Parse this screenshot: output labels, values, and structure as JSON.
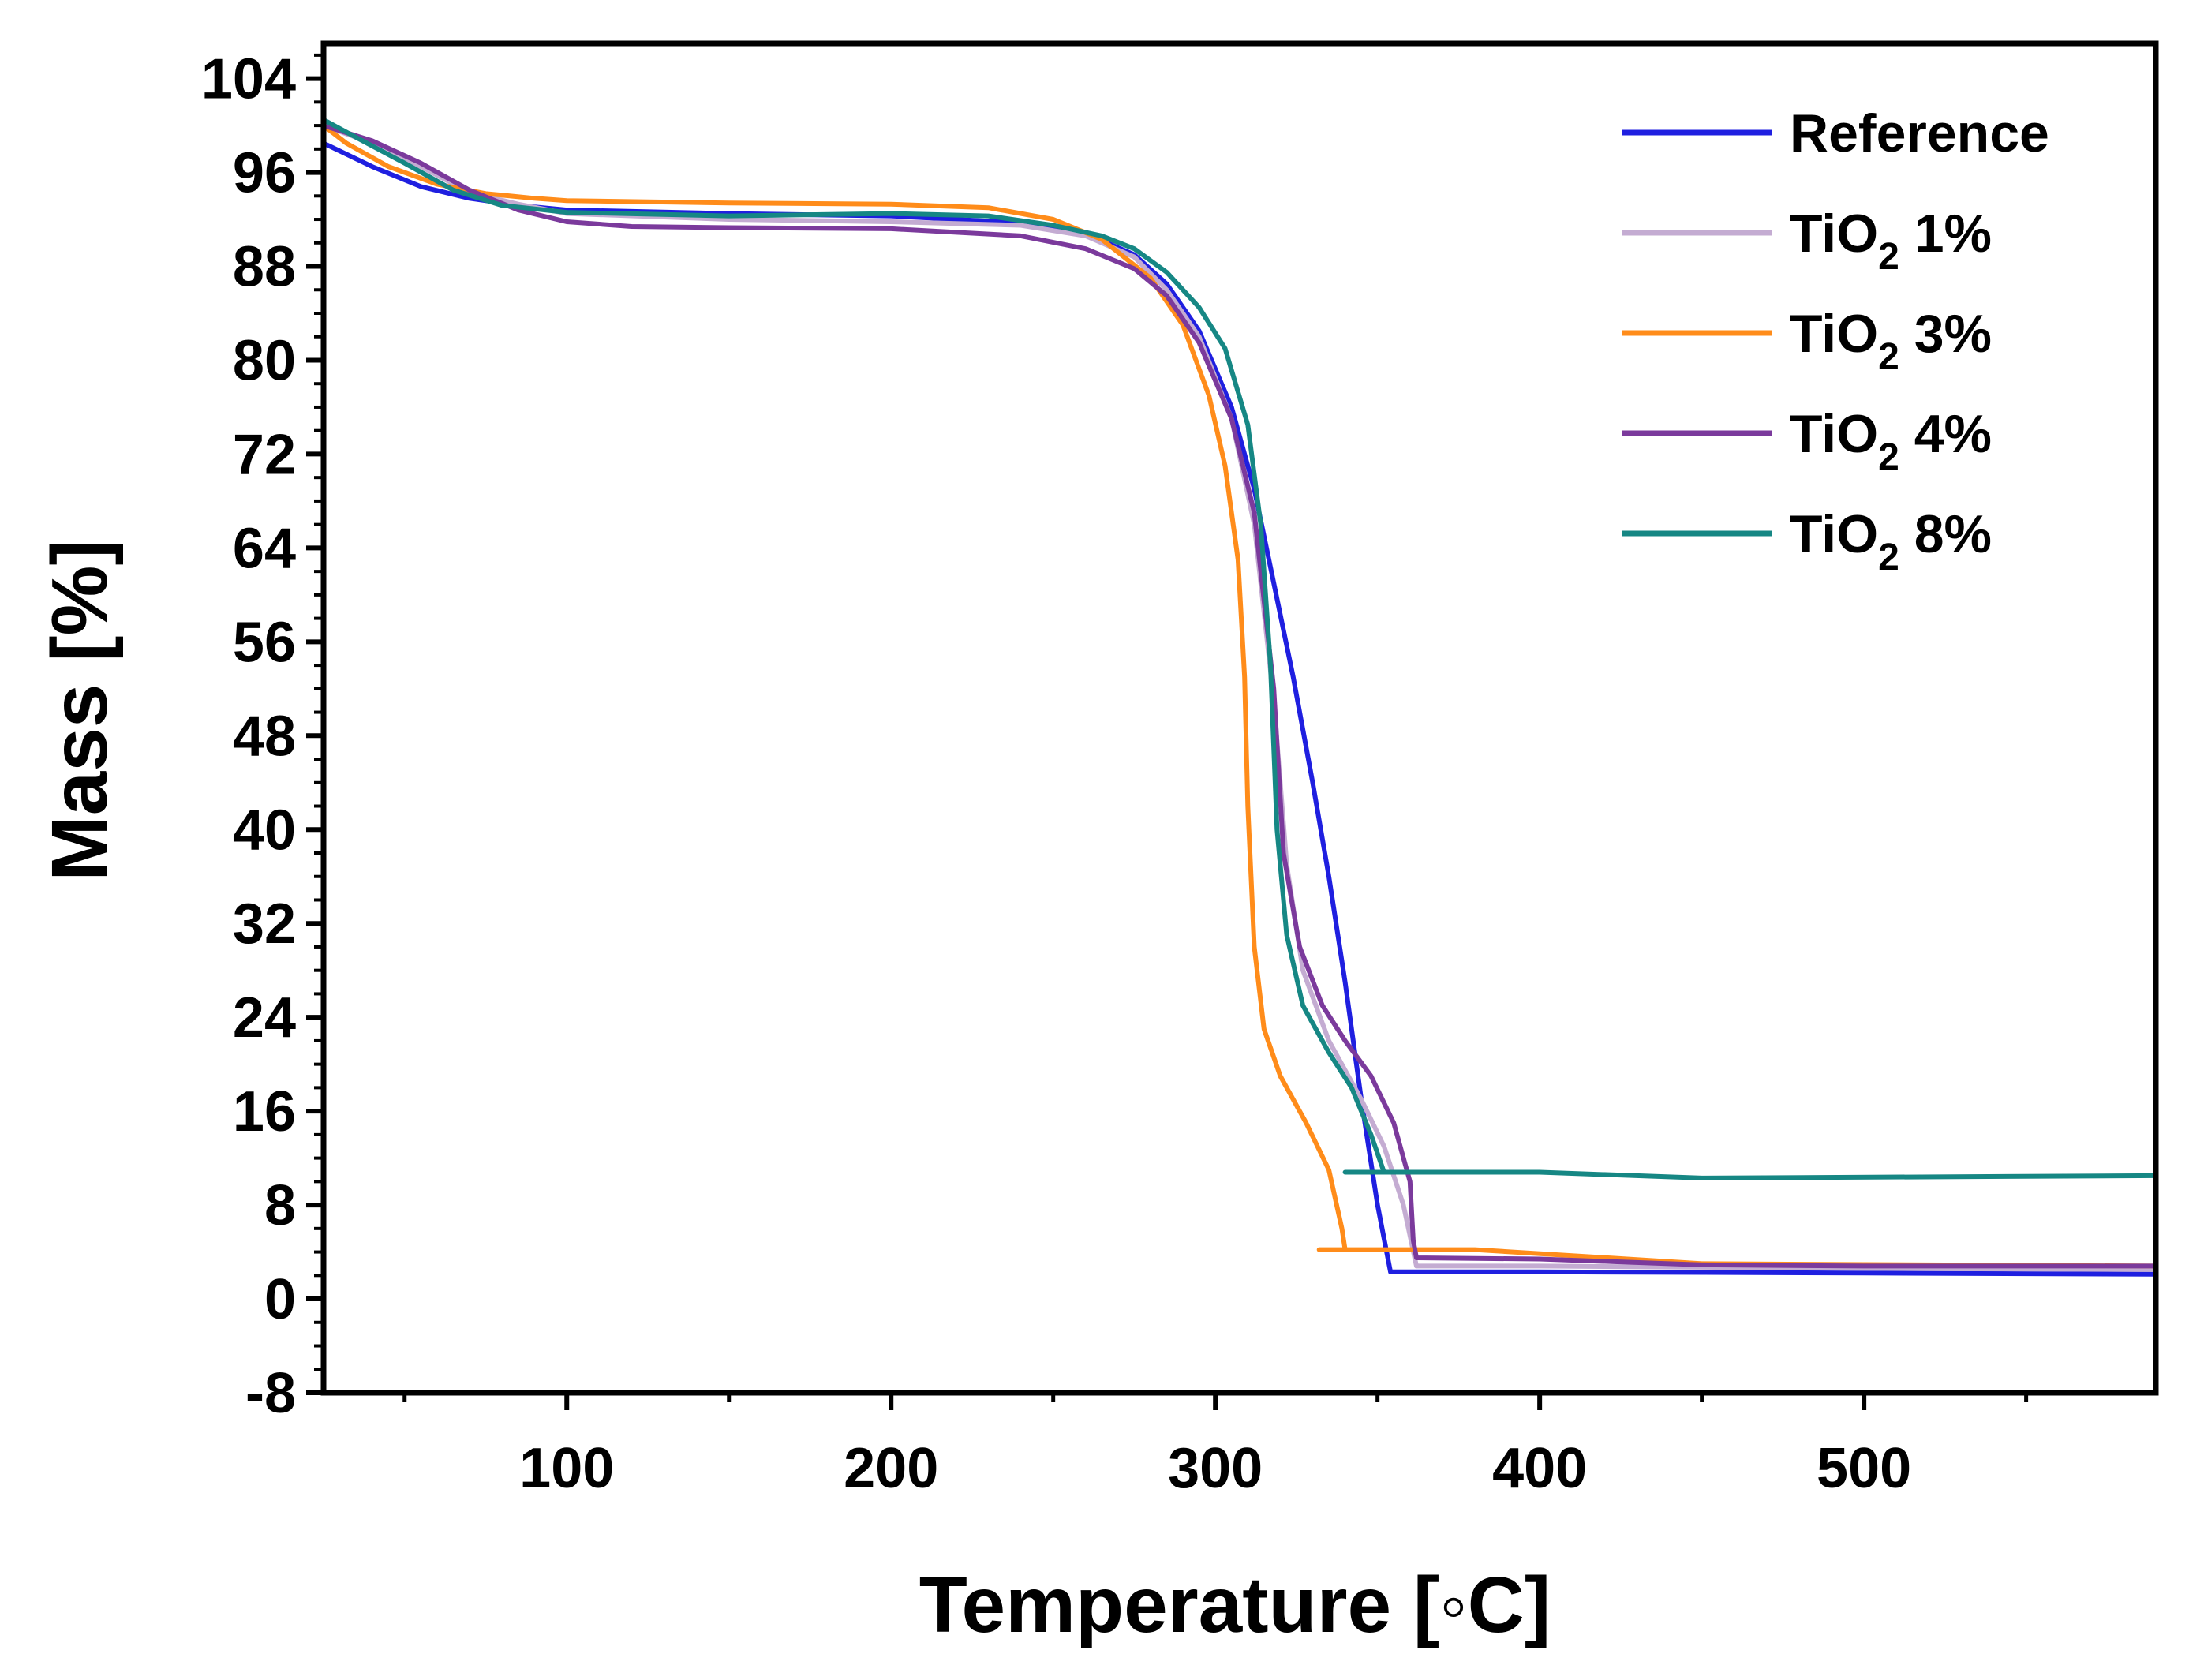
{
  "chart_data": {
    "type": "line",
    "title": "",
    "xlabel": "Temperature [◦C]",
    "ylabel": "Mass [%]",
    "xlim": [
      25,
      590
    ],
    "ylim": [
      -8,
      107
    ],
    "x_ticks": [
      100,
      200,
      300,
      400,
      500
    ],
    "x_tick_labels": [
      "100",
      "200",
      "300",
      "400",
      "500"
    ],
    "x_minor_ticks": [
      50,
      150,
      250,
      350,
      450,
      550
    ],
    "y_ticks": [
      -8,
      0,
      8,
      16,
      24,
      32,
      40,
      48,
      56,
      64,
      72,
      80,
      88,
      96,
      104
    ],
    "y_tick_labels": [
      "-8",
      "0",
      "8",
      "16",
      "24",
      "32",
      "40",
      "48",
      "56",
      "64",
      "72",
      "80",
      "88",
      "96",
      "104"
    ],
    "grid": false,
    "legend_position": "top-right",
    "series": [
      {
        "name": "Reference",
        "label_main": "Reference",
        "label_sub": "",
        "label_tail": "",
        "color": "#1f1fe0",
        "points": [
          [
            25,
            98.5
          ],
          [
            40,
            96.5
          ],
          [
            55,
            94.8
          ],
          [
            70,
            93.8
          ],
          [
            85,
            93.2
          ],
          [
            100,
            92.8
          ],
          [
            150,
            92.5
          ],
          [
            200,
            92.3
          ],
          [
            240,
            91.7
          ],
          [
            260,
            90.8
          ],
          [
            275,
            89
          ],
          [
            285,
            86.5
          ],
          [
            295,
            82.5
          ],
          [
            305,
            76
          ],
          [
            312,
            69
          ],
          [
            318,
            61
          ],
          [
            324,
            53
          ],
          [
            330,
            44
          ],
          [
            335,
            36
          ],
          [
            340,
            27
          ],
          [
            345,
            17
          ],
          [
            350,
            8
          ],
          [
            354,
            2.3
          ],
          [
            400,
            2.3
          ],
          [
            500,
            2.2
          ],
          [
            590,
            2.1
          ]
        ]
      },
      {
        "name": "TiO2 1%",
        "label_main": "TiO",
        "label_sub": "2",
        "label_tail": " 1%",
        "color": "#c4acd2",
        "points": [
          [
            25,
            100
          ],
          [
            40,
            98.5
          ],
          [
            55,
            96.5
          ],
          [
            70,
            94.3
          ],
          [
            85,
            93.3
          ],
          [
            100,
            92.5
          ],
          [
            150,
            92
          ],
          [
            200,
            91.8
          ],
          [
            240,
            91.5
          ],
          [
            260,
            90.6
          ],
          [
            275,
            88.8
          ],
          [
            285,
            86
          ],
          [
            295,
            82
          ],
          [
            305,
            75
          ],
          [
            312,
            66
          ],
          [
            318,
            51
          ],
          [
            322,
            37
          ],
          [
            327,
            28
          ],
          [
            335,
            22
          ],
          [
            345,
            17
          ],
          [
            352,
            13
          ],
          [
            358,
            8
          ],
          [
            362,
            2.8
          ],
          [
            400,
            2.8
          ],
          [
            500,
            2.6
          ],
          [
            590,
            2.5
          ]
        ]
      },
      {
        "name": "TiO2 3%",
        "label_main": "TiO",
        "label_sub": "2",
        "label_tail": " 3%",
        "color": "#ff8c1a",
        "points": [
          [
            25,
            100
          ],
          [
            32,
            98.5
          ],
          [
            45,
            96.5
          ],
          [
            60,
            95
          ],
          [
            75,
            94.2
          ],
          [
            90,
            93.8
          ],
          [
            100,
            93.6
          ],
          [
            150,
            93.4
          ],
          [
            200,
            93.3
          ],
          [
            230,
            93
          ],
          [
            250,
            92
          ],
          [
            265,
            90.3
          ],
          [
            280,
            87
          ],
          [
            290,
            83
          ],
          [
            298,
            77
          ],
          [
            303,
            71
          ],
          [
            307,
            63
          ],
          [
            309,
            53
          ],
          [
            310,
            42
          ],
          [
            312,
            30
          ],
          [
            315,
            23
          ],
          [
            320,
            19
          ],
          [
            328,
            15
          ],
          [
            335,
            11
          ],
          [
            339,
            6
          ],
          [
            340,
            4.2
          ],
          [
            332,
            4.2
          ],
          [
            380,
            4.2
          ],
          [
            450,
            3
          ],
          [
            590,
            2.8
          ]
        ]
      },
      {
        "name": "TiO2 4%",
        "label_main": "TiO",
        "label_sub": "2",
        "label_tail": " 4%",
        "color": "#7b3a9c",
        "points": [
          [
            25,
            100
          ],
          [
            40,
            98.7
          ],
          [
            55,
            96.8
          ],
          [
            70,
            94.5
          ],
          [
            85,
            92.8
          ],
          [
            100,
            91.8
          ],
          [
            120,
            91.4
          ],
          [
            150,
            91.3
          ],
          [
            200,
            91.2
          ],
          [
            240,
            90.6
          ],
          [
            260,
            89.5
          ],
          [
            275,
            87.8
          ],
          [
            285,
            85.5
          ],
          [
            295,
            81.5
          ],
          [
            305,
            75
          ],
          [
            312,
            67
          ],
          [
            318,
            52
          ],
          [
            321,
            38
          ],
          [
            326,
            30
          ],
          [
            333,
            25
          ],
          [
            340,
            22
          ],
          [
            348,
            19
          ],
          [
            355,
            15
          ],
          [
            360,
            10
          ],
          [
            361,
            5
          ],
          [
            362,
            3.5
          ],
          [
            400,
            3.4
          ],
          [
            450,
            2.9
          ],
          [
            500,
            2.8
          ],
          [
            590,
            2.8
          ]
        ]
      },
      {
        "name": "TiO2 8%",
        "label_main": "TiO",
        "label_sub": "2",
        "label_tail": " 8%",
        "color": "#168784",
        "points": [
          [
            25,
            100.5
          ],
          [
            35,
            99
          ],
          [
            50,
            96.8
          ],
          [
            65,
            94.5
          ],
          [
            80,
            93.2
          ],
          [
            100,
            92.6
          ],
          [
            150,
            92.3
          ],
          [
            200,
            92.5
          ],
          [
            230,
            92.3
          ],
          [
            250,
            91.5
          ],
          [
            265,
            90.6
          ],
          [
            275,
            89.5
          ],
          [
            285,
            87.5
          ],
          [
            295,
            84.5
          ],
          [
            303,
            81
          ],
          [
            310,
            74.5
          ],
          [
            314,
            66
          ],
          [
            317,
            54
          ],
          [
            319,
            40
          ],
          [
            322,
            31
          ],
          [
            327,
            25
          ],
          [
            335,
            21
          ],
          [
            342,
            18
          ],
          [
            348,
            14
          ],
          [
            352,
            10.8
          ],
          [
            340,
            10.8
          ],
          [
            400,
            10.8
          ],
          [
            450,
            10.3
          ],
          [
            590,
            10.5
          ]
        ]
      }
    ]
  }
}
